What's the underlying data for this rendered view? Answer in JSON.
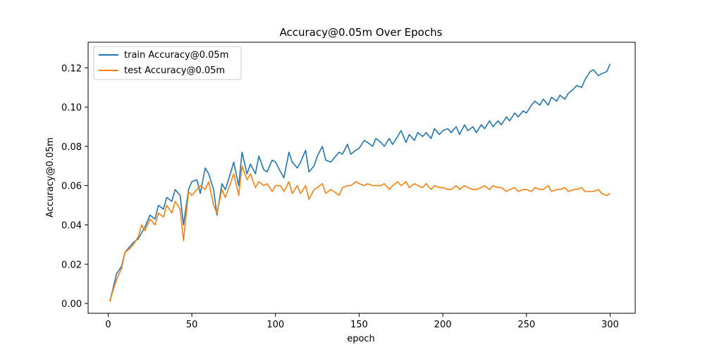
{
  "chart_data": {
    "type": "line",
    "title": "Accuracy@0.05m Over Epochs",
    "xlabel": "epoch",
    "ylabel": "Accuracy@0.05m",
    "xlim": [
      -12,
      315
    ],
    "ylim": [
      -0.005,
      0.133
    ],
    "xticks": [
      0,
      50,
      100,
      150,
      200,
      250,
      300
    ],
    "yticks": [
      0.0,
      0.02,
      0.04,
      0.06,
      0.08,
      0.1,
      0.12
    ],
    "ytick_labels": [
      "0.00",
      "0.02",
      "0.04",
      "0.06",
      "0.08",
      "0.10",
      "0.12"
    ],
    "legend_position": "top-left",
    "grid": false,
    "series": [
      {
        "name": "train Accuracy@0.05m",
        "color": "#1f77b4",
        "points": [
          [
            1,
            0.001
          ],
          [
            3,
            0.008
          ],
          [
            5,
            0.015
          ],
          [
            8,
            0.019
          ],
          [
            10,
            0.026
          ],
          [
            13,
            0.029
          ],
          [
            15,
            0.031
          ],
          [
            18,
            0.033
          ],
          [
            20,
            0.036
          ],
          [
            22,
            0.039
          ],
          [
            25,
            0.045
          ],
          [
            28,
            0.043
          ],
          [
            30,
            0.05
          ],
          [
            33,
            0.048
          ],
          [
            35,
            0.054
          ],
          [
            38,
            0.052
          ],
          [
            40,
            0.058
          ],
          [
            43,
            0.055
          ],
          [
            45,
            0.04
          ],
          [
            48,
            0.058
          ],
          [
            50,
            0.062
          ],
          [
            53,
            0.063
          ],
          [
            55,
            0.056
          ],
          [
            58,
            0.069
          ],
          [
            60,
            0.066
          ],
          [
            63,
            0.058
          ],
          [
            65,
            0.045
          ],
          [
            68,
            0.061
          ],
          [
            70,
            0.058
          ],
          [
            73,
            0.066
          ],
          [
            75,
            0.072
          ],
          [
            78,
            0.06
          ],
          [
            80,
            0.077
          ],
          [
            83,
            0.066
          ],
          [
            85,
            0.071
          ],
          [
            88,
            0.066
          ],
          [
            90,
            0.075
          ],
          [
            93,
            0.068
          ],
          [
            95,
            0.067
          ],
          [
            98,
            0.073
          ],
          [
            100,
            0.072
          ],
          [
            103,
            0.067
          ],
          [
            105,
            0.064
          ],
          [
            108,
            0.077
          ],
          [
            110,
            0.072
          ],
          [
            113,
            0.069
          ],
          [
            115,
            0.072
          ],
          [
            118,
            0.078
          ],
          [
            120,
            0.067
          ],
          [
            123,
            0.07
          ],
          [
            125,
            0.075
          ],
          [
            128,
            0.08
          ],
          [
            130,
            0.073
          ],
          [
            133,
            0.072
          ],
          [
            135,
            0.074
          ],
          [
            138,
            0.077
          ],
          [
            140,
            0.076
          ],
          [
            143,
            0.081
          ],
          [
            145,
            0.076
          ],
          [
            148,
            0.078
          ],
          [
            150,
            0.079
          ],
          [
            153,
            0.083
          ],
          [
            155,
            0.082
          ],
          [
            158,
            0.08
          ],
          [
            160,
            0.084
          ],
          [
            163,
            0.082
          ],
          [
            165,
            0.08
          ],
          [
            168,
            0.084
          ],
          [
            170,
            0.081
          ],
          [
            173,
            0.085
          ],
          [
            175,
            0.088
          ],
          [
            178,
            0.082
          ],
          [
            180,
            0.086
          ],
          [
            183,
            0.083
          ],
          [
            185,
            0.087
          ],
          [
            188,
            0.085
          ],
          [
            190,
            0.087
          ],
          [
            193,
            0.084
          ],
          [
            195,
            0.089
          ],
          [
            198,
            0.086
          ],
          [
            200,
            0.088
          ],
          [
            203,
            0.089
          ],
          [
            205,
            0.087
          ],
          [
            208,
            0.09
          ],
          [
            210,
            0.086
          ],
          [
            213,
            0.091
          ],
          [
            215,
            0.088
          ],
          [
            218,
            0.09
          ],
          [
            220,
            0.087
          ],
          [
            223,
            0.091
          ],
          [
            225,
            0.089
          ],
          [
            228,
            0.093
          ],
          [
            230,
            0.09
          ],
          [
            233,
            0.093
          ],
          [
            235,
            0.091
          ],
          [
            238,
            0.095
          ],
          [
            240,
            0.093
          ],
          [
            243,
            0.097
          ],
          [
            245,
            0.095
          ],
          [
            248,
            0.098
          ],
          [
            250,
            0.097
          ],
          [
            253,
            0.101
          ],
          [
            255,
            0.103
          ],
          [
            258,
            0.101
          ],
          [
            260,
            0.104
          ],
          [
            263,
            0.101
          ],
          [
            265,
            0.105
          ],
          [
            268,
            0.103
          ],
          [
            270,
            0.106
          ],
          [
            273,
            0.104
          ],
          [
            275,
            0.107
          ],
          [
            278,
            0.109
          ],
          [
            280,
            0.111
          ],
          [
            283,
            0.11
          ],
          [
            285,
            0.114
          ],
          [
            288,
            0.118
          ],
          [
            290,
            0.119
          ],
          [
            293,
            0.116
          ],
          [
            295,
            0.117
          ],
          [
            298,
            0.118
          ],
          [
            300,
            0.122
          ]
        ]
      },
      {
        "name": "test Accuracy@0.05m",
        "color": "#ff7f0e",
        "points": [
          [
            1,
            0.001
          ],
          [
            3,
            0.007
          ],
          [
            5,
            0.012
          ],
          [
            8,
            0.018
          ],
          [
            10,
            0.026
          ],
          [
            13,
            0.028
          ],
          [
            15,
            0.03
          ],
          [
            18,
            0.034
          ],
          [
            20,
            0.04
          ],
          [
            22,
            0.037
          ],
          [
            25,
            0.043
          ],
          [
            28,
            0.04
          ],
          [
            30,
            0.046
          ],
          [
            33,
            0.044
          ],
          [
            35,
            0.05
          ],
          [
            38,
            0.046
          ],
          [
            40,
            0.052
          ],
          [
            43,
            0.048
          ],
          [
            45,
            0.032
          ],
          [
            48,
            0.057
          ],
          [
            50,
            0.055
          ],
          [
            53,
            0.058
          ],
          [
            55,
            0.06
          ],
          [
            58,
            0.058
          ],
          [
            60,
            0.062
          ],
          [
            63,
            0.05
          ],
          [
            65,
            0.046
          ],
          [
            68,
            0.058
          ],
          [
            70,
            0.054
          ],
          [
            73,
            0.061
          ],
          [
            75,
            0.066
          ],
          [
            78,
            0.055
          ],
          [
            80,
            0.07
          ],
          [
            83,
            0.063
          ],
          [
            85,
            0.066
          ],
          [
            88,
            0.059
          ],
          [
            90,
            0.062
          ],
          [
            93,
            0.06
          ],
          [
            95,
            0.061
          ],
          [
            98,
            0.057
          ],
          [
            100,
            0.06
          ],
          [
            103,
            0.06
          ],
          [
            105,
            0.057
          ],
          [
            108,
            0.062
          ],
          [
            110,
            0.056
          ],
          [
            113,
            0.06
          ],
          [
            115,
            0.056
          ],
          [
            118,
            0.06
          ],
          [
            120,
            0.053
          ],
          [
            123,
            0.058
          ],
          [
            125,
            0.059
          ],
          [
            128,
            0.061
          ],
          [
            130,
            0.056
          ],
          [
            133,
            0.058
          ],
          [
            135,
            0.057
          ],
          [
            138,
            0.055
          ],
          [
            140,
            0.059
          ],
          [
            143,
            0.06
          ],
          [
            145,
            0.06
          ],
          [
            148,
            0.062
          ],
          [
            150,
            0.061
          ],
          [
            153,
            0.06
          ],
          [
            155,
            0.061
          ],
          [
            158,
            0.06
          ],
          [
            160,
            0.06
          ],
          [
            163,
            0.06
          ],
          [
            165,
            0.061
          ],
          [
            168,
            0.058
          ],
          [
            170,
            0.06
          ],
          [
            173,
            0.062
          ],
          [
            175,
            0.06
          ],
          [
            178,
            0.062
          ],
          [
            180,
            0.059
          ],
          [
            183,
            0.061
          ],
          [
            185,
            0.06
          ],
          [
            188,
            0.059
          ],
          [
            190,
            0.061
          ],
          [
            193,
            0.058
          ],
          [
            195,
            0.06
          ],
          [
            198,
            0.059
          ],
          [
            200,
            0.059
          ],
          [
            203,
            0.058
          ],
          [
            205,
            0.058
          ],
          [
            208,
            0.06
          ],
          [
            210,
            0.058
          ],
          [
            213,
            0.06
          ],
          [
            215,
            0.059
          ],
          [
            218,
            0.058
          ],
          [
            220,
            0.058
          ],
          [
            223,
            0.059
          ],
          [
            225,
            0.06
          ],
          [
            228,
            0.058
          ],
          [
            230,
            0.06
          ],
          [
            233,
            0.059
          ],
          [
            235,
            0.059
          ],
          [
            238,
            0.057
          ],
          [
            240,
            0.058
          ],
          [
            243,
            0.059
          ],
          [
            245,
            0.057
          ],
          [
            248,
            0.058
          ],
          [
            250,
            0.058
          ],
          [
            253,
            0.057
          ],
          [
            255,
            0.059
          ],
          [
            258,
            0.058
          ],
          [
            260,
            0.058
          ],
          [
            263,
            0.06
          ],
          [
            265,
            0.057
          ],
          [
            268,
            0.058
          ],
          [
            270,
            0.058
          ],
          [
            273,
            0.059
          ],
          [
            275,
            0.057
          ],
          [
            278,
            0.058
          ],
          [
            280,
            0.058
          ],
          [
            283,
            0.059
          ],
          [
            285,
            0.057
          ],
          [
            288,
            0.057
          ],
          [
            290,
            0.057
          ],
          [
            293,
            0.058
          ],
          [
            295,
            0.056
          ],
          [
            298,
            0.055
          ],
          [
            300,
            0.056
          ]
        ]
      }
    ]
  }
}
